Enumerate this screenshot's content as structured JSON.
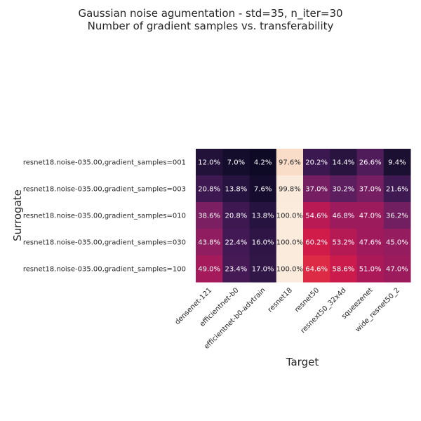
{
  "chart_data": {
    "type": "heatmap",
    "title": "Gaussian noise agumentation - std=35, n_iter=30",
    "subtitle": "Number of gradient samples vs. transferability",
    "xlabel": "Target",
    "ylabel": "Surrogate",
    "columns": [
      "densenet-121",
      "efficientnet-b0",
      "efficientnet-b0-advtrain",
      "resnet18",
      "resnet50",
      "resnext50_32x4d",
      "squeezenet",
      "wide_resnet50_2"
    ],
    "rows": [
      "resnet18.noise-035.00,gradient_samples=001",
      "resnet18.noise-035.00,gradient_samples=003",
      "resnet18.noise-035.00,gradient_samples=010",
      "resnet18.noise-035.00,gradient_samples=030",
      "resnet18.noise-035.00,gradient_samples=100"
    ],
    "values": [
      [
        12.0,
        7.0,
        4.2,
        97.6,
        20.2,
        14.4,
        26.6,
        9.4
      ],
      [
        20.8,
        13.8,
        7.6,
        99.8,
        37.0,
        30.2,
        37.0,
        21.6
      ],
      [
        38.6,
        20.8,
        13.8,
        100.0,
        54.6,
        46.8,
        47.0,
        36.2
      ],
      [
        43.8,
        22.4,
        16.0,
        100.0,
        60.2,
        53.2,
        47.6,
        45.0
      ],
      [
        49.0,
        23.4,
        17.0,
        100.0,
        64.6,
        58.6,
        51.0,
        47.0
      ]
    ],
    "value_format": "percent_1dp",
    "colormap": "rocket",
    "vmin": 0,
    "vmax": 100
  }
}
